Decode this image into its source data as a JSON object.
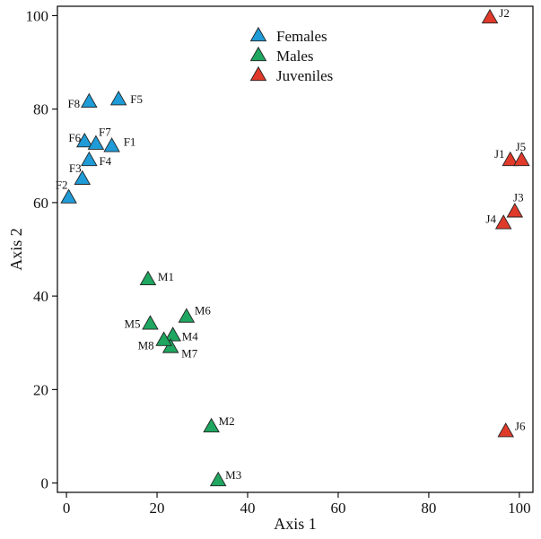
{
  "chart_data": {
    "type": "scatter",
    "title": "",
    "xlabel": "Axis 1",
    "ylabel": "Axis 2",
    "xlim": [
      -2,
      103
    ],
    "ylim": [
      -2,
      102
    ],
    "xticks": [
      0,
      20,
      40,
      60,
      80,
      100
    ],
    "yticks": [
      0,
      20,
      40,
      60,
      80,
      100
    ],
    "grid": false,
    "legend_position": "top-center",
    "series": [
      {
        "name": "Females",
        "color": "#1f9bd7",
        "marker": "triangle",
        "points": [
          {
            "label": "F1",
            "x": 10,
            "y": 72
          },
          {
            "label": "F2",
            "x": 0.5,
            "y": 61
          },
          {
            "label": "F3",
            "x": 3.5,
            "y": 65
          },
          {
            "label": "F4",
            "x": 5,
            "y": 69
          },
          {
            "label": "F5",
            "x": 11.5,
            "y": 82
          },
          {
            "label": "F6",
            "x": 4,
            "y": 73
          },
          {
            "label": "F7",
            "x": 6.5,
            "y": 72.5
          },
          {
            "label": "F8",
            "x": 5,
            "y": 81.5
          }
        ]
      },
      {
        "name": "Males",
        "color": "#1fa660",
        "marker": "triangle",
        "points": [
          {
            "label": "M1",
            "x": 18,
            "y": 43.5
          },
          {
            "label": "M2",
            "x": 32,
            "y": 12
          },
          {
            "label": "M3",
            "x": 33.5,
            "y": 0.5
          },
          {
            "label": "M4",
            "x": 23.5,
            "y": 31.5
          },
          {
            "label": "M5",
            "x": 18.5,
            "y": 34
          },
          {
            "label": "M6",
            "x": 26.5,
            "y": 35.5
          },
          {
            "label": "M7",
            "x": 23,
            "y": 29
          },
          {
            "label": "M8",
            "x": 21.5,
            "y": 30.5
          }
        ]
      },
      {
        "name": "Juveniles",
        "color": "#e03a2b",
        "marker": "triangle",
        "points": [
          {
            "label": "J1",
            "x": 98,
            "y": 69
          },
          {
            "label": "J2",
            "x": 93.5,
            "y": 99.5
          },
          {
            "label": "J3",
            "x": 99,
            "y": 58
          },
          {
            "label": "J4",
            "x": 96.5,
            "y": 55.5
          },
          {
            "label": "J5",
            "x": 100.5,
            "y": 69
          },
          {
            "label": "J6",
            "x": 97,
            "y": 11
          }
        ]
      }
    ]
  }
}
